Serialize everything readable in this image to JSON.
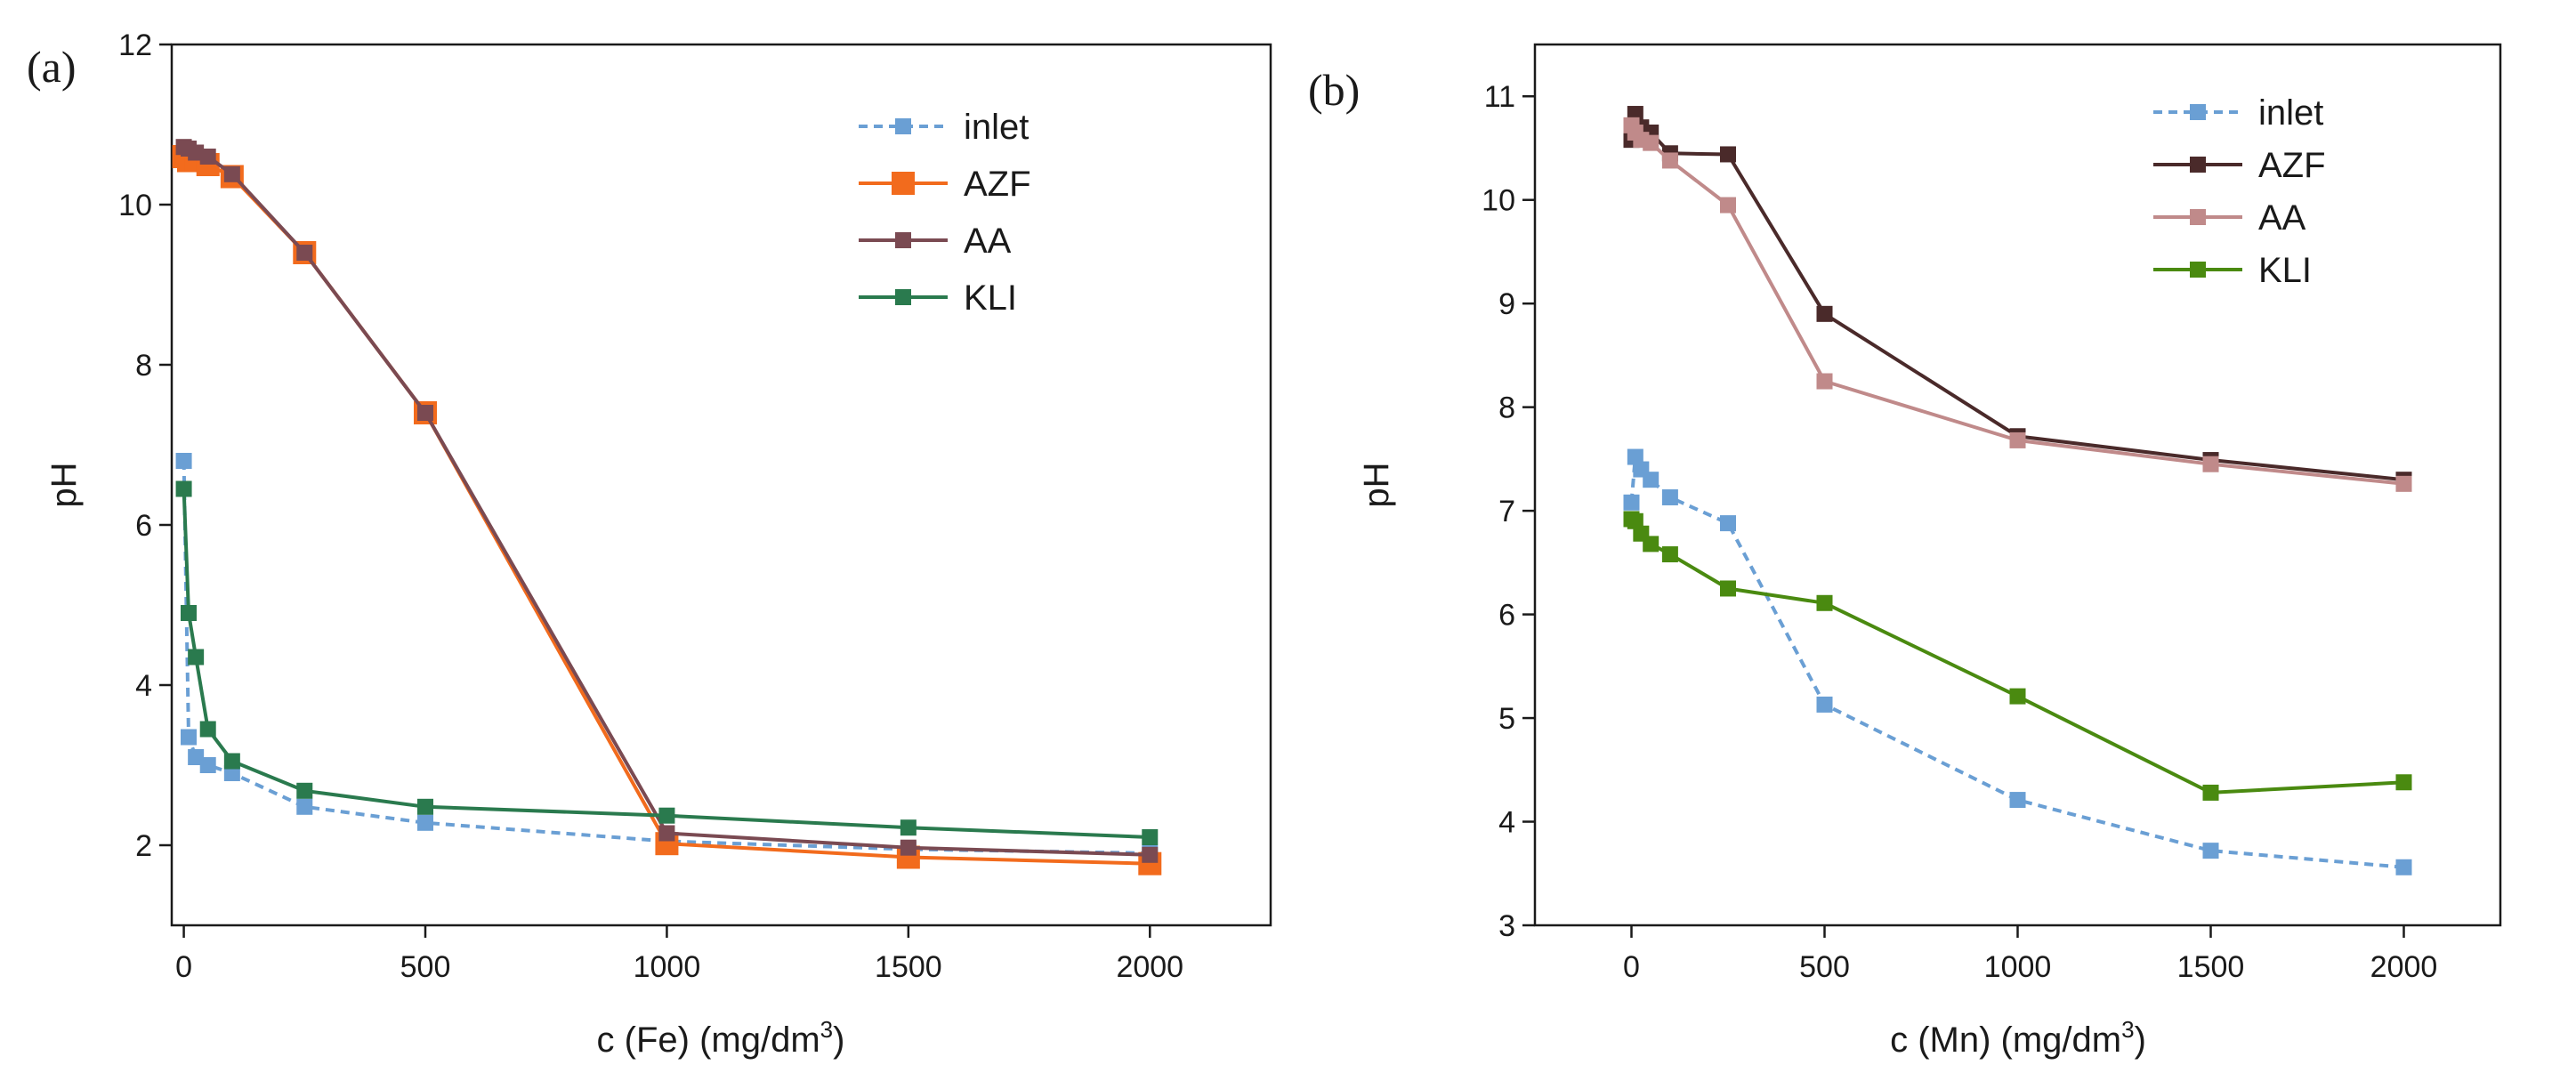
{
  "chart_data": [
    {
      "type": "line",
      "panel_label": "(a)",
      "xlabel": "c (Fe) (mg/dm",
      "xlabel_sup": "3",
      "xlabel_tail": ")",
      "ylabel": "pH",
      "xlim": [
        -25,
        2250
      ],
      "ylim": [
        1,
        12
      ],
      "xticks": [
        0,
        500,
        1000,
        1500,
        2000
      ],
      "yticks": [
        2,
        4,
        6,
        8,
        10,
        12
      ],
      "grid": false,
      "legend_position": "top-right",
      "series": [
        {
          "name": "inlet",
          "color": "#6a9fd4",
          "style": "dashed",
          "marker_size": 18,
          "x": [
            0,
            10,
            25,
            50,
            100,
            250,
            500,
            1000,
            1500,
            2000
          ],
          "y": [
            6.8,
            3.35,
            3.1,
            3.0,
            2.9,
            2.48,
            2.28,
            2.05,
            1.95,
            1.9
          ]
        },
        {
          "name": "AZF",
          "color": "#f26b1d",
          "style": "solid",
          "marker_size": 26,
          "x": [
            0,
            10,
            25,
            50,
            100,
            250,
            500,
            1000,
            1500,
            2000
          ],
          "y": [
            10.6,
            10.55,
            10.55,
            10.5,
            10.35,
            9.4,
            7.4,
            2.02,
            1.85,
            1.77
          ]
        },
        {
          "name": "AA",
          "color": "#7a4a52",
          "style": "solid",
          "marker_size": 18,
          "x": [
            0,
            10,
            25,
            50,
            100,
            250,
            500,
            1000,
            1500,
            2000
          ],
          "y": [
            10.72,
            10.7,
            10.65,
            10.6,
            10.38,
            9.4,
            7.4,
            2.15,
            1.97,
            1.88
          ]
        },
        {
          "name": "KLI",
          "color": "#2a7a4e",
          "style": "solid",
          "marker_size": 18,
          "x": [
            0,
            10,
            25,
            50,
            100,
            250,
            500,
            1000,
            1500,
            2000
          ],
          "y": [
            6.45,
            4.9,
            4.35,
            3.45,
            3.05,
            2.68,
            2.48,
            2.37,
            2.22,
            2.1
          ]
        }
      ]
    },
    {
      "type": "line",
      "panel_label": "(b)",
      "xlabel": "c (Mn) (mg/dm",
      "xlabel_sup": "3",
      "xlabel_tail": ")",
      "ylabel": "pH",
      "xlim": [
        -250,
        2250
      ],
      "ylim": [
        3,
        11.5
      ],
      "xticks": [
        0,
        500,
        1000,
        1500,
        2000
      ],
      "yticks": [
        3,
        4,
        5,
        6,
        7,
        8,
        9,
        10,
        11
      ],
      "grid": false,
      "legend_position": "top-right",
      "series": [
        {
          "name": "inlet",
          "color": "#6a9fd4",
          "style": "dashed",
          "marker_size": 18,
          "x": [
            0,
            10,
            25,
            50,
            100,
            250,
            500,
            1000,
            1500,
            2000
          ],
          "y": [
            7.08,
            7.52,
            7.4,
            7.3,
            7.13,
            6.88,
            5.13,
            4.21,
            3.72,
            3.56
          ]
        },
        {
          "name": "AZF",
          "color": "#4a2a2a",
          "style": "solid",
          "marker_size": 18,
          "x": [
            0,
            10,
            25,
            50,
            100,
            250,
            500,
            1000,
            1500,
            2000
          ],
          "y": [
            10.58,
            10.83,
            10.7,
            10.65,
            10.45,
            10.44,
            8.9,
            7.72,
            7.49,
            7.3
          ]
        },
        {
          "name": "AA",
          "color": "#c08a8a",
          "style": "solid",
          "marker_size": 18,
          "x": [
            0,
            10,
            25,
            50,
            100,
            250,
            500,
            1000,
            1500,
            2000
          ],
          "y": [
            10.72,
            10.65,
            10.58,
            10.55,
            10.38,
            9.95,
            8.25,
            7.68,
            7.45,
            7.26
          ]
        },
        {
          "name": "KLI",
          "color": "#4a8a10",
          "style": "solid",
          "marker_size": 18,
          "x": [
            0,
            10,
            25,
            50,
            100,
            250,
            500,
            1000,
            1500,
            2000
          ],
          "y": [
            6.92,
            6.9,
            6.78,
            6.68,
            6.58,
            6.25,
            6.11,
            5.21,
            4.28,
            4.38
          ]
        }
      ]
    }
  ]
}
